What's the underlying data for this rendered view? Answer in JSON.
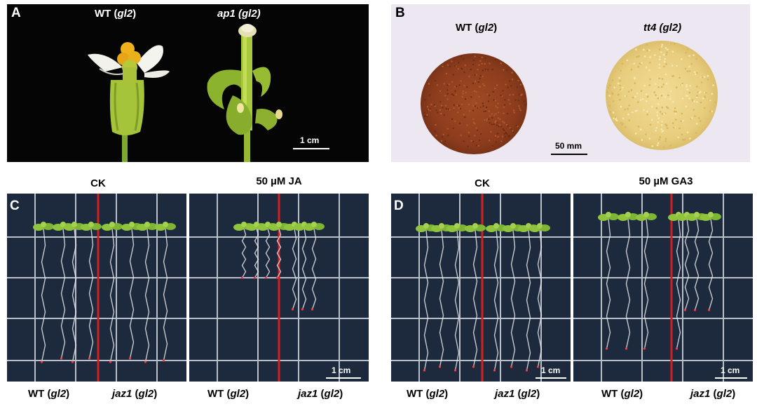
{
  "panels": {
    "a": {
      "letter": "A",
      "labels": [
        {
          "id": "wt",
          "pre": "WT (",
          "it": "gl2",
          "post": ")",
          "allItalic": false
        },
        {
          "id": "ap1",
          "pre": "",
          "it": "ap1 (gl2)",
          "post": "",
          "allItalic": true
        }
      ],
      "scale": "1 cm"
    },
    "b": {
      "letter": "B",
      "labels": [
        {
          "id": "wt",
          "pre": "WT (",
          "it": "gl2",
          "post": ")",
          "allItalic": false
        },
        {
          "id": "tt4",
          "pre": "",
          "it": "tt4 (gl2)",
          "post": "",
          "allItalic": true
        }
      ],
      "scale": "50 mm"
    },
    "c": {
      "letter": "C",
      "headers": [
        "CK",
        "50 µM JA"
      ],
      "scale": "1 cm",
      "footers": [
        {
          "pre": "WT (",
          "it": "gl2",
          "post": ")"
        },
        {
          "pre": "",
          "it": "jaz1",
          "post": " (",
          "it2": "gl2",
          "post2": ")"
        },
        {
          "pre": "WT (",
          "it": "gl2",
          "post": ")"
        },
        {
          "pre": "",
          "it": "jaz1",
          "post": " (",
          "it2": "gl2",
          "post2": ")"
        }
      ]
    },
    "d": {
      "letter": "D",
      "headers": [
        "CK",
        "50 µM GA3"
      ],
      "scale": "1 cm",
      "footers": [
        {
          "pre": "WT (",
          "it": "gl2",
          "post": ")"
        },
        {
          "pre": "",
          "it": "jaz1",
          "post": " (",
          "it2": "gl2",
          "post2": ")"
        },
        {
          "pre": "WT (",
          "it": "gl2",
          "post": ")"
        },
        {
          "pre": "",
          "it": "jaz1",
          "post": " (",
          "it2": "gl2",
          "post2": ")"
        }
      ]
    }
  },
  "colors": {
    "panel_a_bg": "#050505",
    "panel_b_bg": "#ece7f0",
    "plate_bg": "#1d2a3d",
    "grid": "#b9c0c9",
    "divider": "#d21f1f",
    "wt_seed": "#8e3d1f",
    "tt4_seed": "#e9cf84",
    "leaf": "#8fc43c",
    "root": "#e2e6ea"
  }
}
